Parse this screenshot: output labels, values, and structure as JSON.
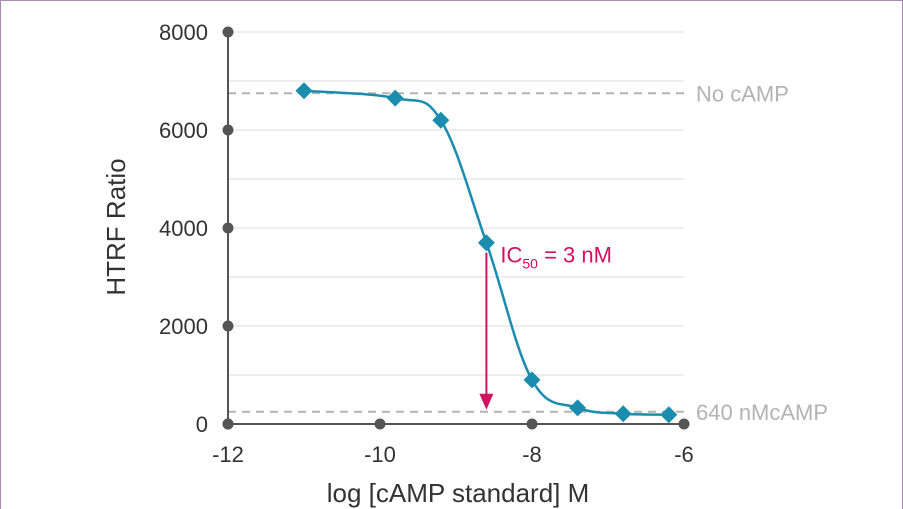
{
  "chart_data": {
    "type": "scatter",
    "xlabel": "log [cAMP standard] M",
    "ylabel": "HTRF Ratio",
    "xlim": [
      -12,
      -6
    ],
    "ylim": [
      0,
      8000
    ],
    "x_ticks": [
      "-12",
      "-10",
      "-8",
      "-6"
    ],
    "y_ticks": [
      "0",
      "2000",
      "4000",
      "6000",
      "8000"
    ],
    "grid": "horizontal",
    "series": [
      {
        "x": [
          -11.0,
          -9.8,
          -9.2,
          -8.6,
          -8.0,
          -7.4,
          -6.8,
          -6.2
        ],
        "y": [
          6800,
          6650,
          6200,
          3700,
          900,
          330,
          210,
          190
        ],
        "color": "#1a8cad",
        "marker": "diamond",
        "fit": "sigmoidal"
      }
    ],
    "reference_lines": [
      {
        "label": "No cAMP",
        "y": 6750
      },
      {
        "label": "640 nMcAMP",
        "y": 250
      }
    ],
    "annotation": {
      "text_prefix": "IC",
      "text_subscript": "50",
      "text_suffix": " = 3 nM",
      "x": -8.6,
      "y_from": 3700,
      "y_to": 250,
      "color": "#d1125f"
    },
    "colors": {
      "curve": "#1a8cad",
      "annotation": "#d1125f",
      "reference": "#b3b3b3",
      "axis": "#555555",
      "grid": "#dddddd"
    }
  }
}
